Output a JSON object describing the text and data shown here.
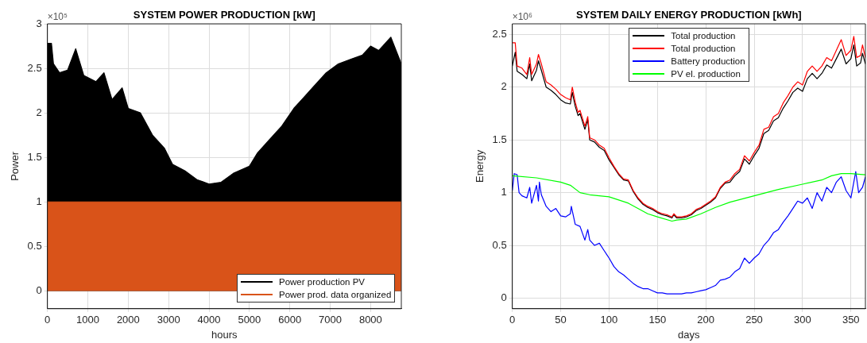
{
  "chart_data": [
    {
      "type": "area",
      "title": "SYSTEM POWER PRODUCTION [kW]",
      "xlabel": "hours",
      "ylabel": "Power",
      "annotations": [
        "×10⁵"
      ],
      "legend": "bottom right",
      "grid": true,
      "xlim": [
        0,
        8760
      ],
      "xticks": [
        0,
        1000,
        2000,
        3000,
        4000,
        5000,
        6000,
        7000,
        8000
      ],
      "ylim": [
        -0.2,
        3
      ],
      "yticks": [
        0,
        0.5,
        1,
        1.5,
        2,
        2.5,
        3
      ],
      "series": [
        {
          "name": "Power production PV",
          "color": "#000000",
          "x": [
            0,
            100,
            150,
            300,
            500,
            700,
            900,
            1200,
            1400,
            1600,
            1850,
            2000,
            2300,
            2600,
            2900,
            3100,
            3400,
            3700,
            4000,
            4300,
            4600,
            5000,
            5200,
            5500,
            5800,
            6100,
            6300,
            6600,
            6900,
            7200,
            7500,
            7800,
            8000,
            8200,
            8500,
            8760
          ],
          "values": [
            2.78,
            2.78,
            2.55,
            2.45,
            2.48,
            2.72,
            2.42,
            2.35,
            2.45,
            2.15,
            2.28,
            2.05,
            2.0,
            1.75,
            1.6,
            1.42,
            1.35,
            1.25,
            1.2,
            1.22,
            1.32,
            1.4,
            1.55,
            1.7,
            1.85,
            2.05,
            2.15,
            2.3,
            2.45,
            2.55,
            2.6,
            2.65,
            2.75,
            2.7,
            2.85,
            2.55
          ]
        },
        {
          "name": "Power prod. data organized",
          "color": "#d95319",
          "x": [
            0,
            8760
          ],
          "values": [
            1,
            1
          ]
        }
      ]
    },
    {
      "type": "line",
      "title": "SYSTEM DAILY ENERGY PRODUCTION [kWh]",
      "xlabel": "days",
      "ylabel": "Energy",
      "annotations": [
        "×10⁶"
      ],
      "legend": "top",
      "grid": true,
      "xlim": [
        0,
        365
      ],
      "xticks": [
        0,
        50,
        100,
        150,
        200,
        250,
        300,
        350
      ],
      "ylim": [
        -0.1,
        2.6
      ],
      "yticks": [
        0,
        0.5,
        1,
        1.5,
        2,
        2.5
      ],
      "x": [
        0,
        3,
        5,
        10,
        15,
        18,
        20,
        25,
        27,
        30,
        35,
        40,
        45,
        50,
        55,
        60,
        62,
        65,
        68,
        70,
        75,
        78,
        80,
        85,
        90,
        95,
        100,
        105,
        110,
        115,
        120,
        125,
        130,
        135,
        140,
        145,
        150,
        155,
        160,
        165,
        167,
        170,
        175,
        180,
        185,
        190,
        195,
        200,
        205,
        210,
        215,
        220,
        225,
        230,
        235,
        240,
        245,
        250,
        255,
        260,
        265,
        270,
        275,
        280,
        285,
        290,
        295,
        300,
        305,
        310,
        315,
        320,
        325,
        330,
        335,
        340,
        345,
        350,
        353,
        356,
        360,
        362,
        365
      ],
      "series": [
        {
          "name": "Total production",
          "color": "#000000",
          "values": [
            2.2,
            2.33,
            2.15,
            2.12,
            2.08,
            2.22,
            2.06,
            2.16,
            2.25,
            2.16,
            2.0,
            1.97,
            1.93,
            1.88,
            1.85,
            1.84,
            1.95,
            1.82,
            1.73,
            1.75,
            1.6,
            1.69,
            1.5,
            1.48,
            1.43,
            1.4,
            1.31,
            1.24,
            1.17,
            1.12,
            1.11,
            1.01,
            0.94,
            0.89,
            0.86,
            0.84,
            0.81,
            0.79,
            0.78,
            0.76,
            0.79,
            0.76,
            0.76,
            0.77,
            0.79,
            0.83,
            0.85,
            0.88,
            0.91,
            0.95,
            1.04,
            1.09,
            1.1,
            1.16,
            1.2,
            1.32,
            1.27,
            1.35,
            1.42,
            1.56,
            1.59,
            1.68,
            1.71,
            1.8,
            1.87,
            1.95,
            1.99,
            1.96,
            2.08,
            2.13,
            2.08,
            2.13,
            2.21,
            2.18,
            2.27,
            2.36,
            2.22,
            2.27,
            2.4,
            2.2,
            2.23,
            2.32,
            2.22
          ]
        },
        {
          "name": "Total production",
          "color": "#ff0000",
          "values": [
            2.42,
            2.42,
            2.2,
            2.18,
            2.12,
            2.28,
            2.12,
            2.22,
            2.31,
            2.22,
            2.05,
            2.02,
            1.98,
            1.93,
            1.9,
            1.88,
            2.0,
            1.86,
            1.76,
            1.78,
            1.63,
            1.72,
            1.52,
            1.5,
            1.45,
            1.42,
            1.33,
            1.25,
            1.18,
            1.13,
            1.12,
            1.02,
            0.95,
            0.9,
            0.87,
            0.85,
            0.82,
            0.8,
            0.79,
            0.77,
            0.8,
            0.77,
            0.77,
            0.78,
            0.8,
            0.84,
            0.86,
            0.89,
            0.92,
            0.96,
            1.05,
            1.1,
            1.12,
            1.18,
            1.22,
            1.35,
            1.3,
            1.38,
            1.45,
            1.6,
            1.62,
            1.72,
            1.75,
            1.85,
            1.92,
            2.0,
            2.05,
            2.02,
            2.15,
            2.2,
            2.15,
            2.2,
            2.28,
            2.25,
            2.35,
            2.45,
            2.3,
            2.35,
            2.48,
            2.28,
            2.3,
            2.4,
            2.28
          ]
        },
        {
          "name": "Battery production",
          "color": "#0000ff",
          "x": [
            0,
            2,
            5,
            7,
            10,
            15,
            18,
            20,
            25,
            27,
            28,
            30,
            35,
            40,
            45,
            50,
            55,
            60,
            61,
            65,
            70,
            75,
            78,
            80,
            85,
            90,
            95,
            100,
            105,
            110,
            115,
            120,
            125,
            130,
            135,
            140,
            145,
            150,
            155,
            160,
            165,
            170,
            175,
            180,
            185,
            190,
            195,
            200,
            205,
            210,
            215,
            220,
            225,
            230,
            235,
            240,
            245,
            250,
            255,
            260,
            265,
            270,
            275,
            280,
            285,
            290,
            295,
            300,
            305,
            310,
            315,
            320,
            325,
            330,
            335,
            340,
            345,
            350,
            355,
            358,
            362,
            365
          ],
          "values": [
            1.02,
            1.18,
            1.17,
            1.0,
            0.97,
            0.95,
            1.05,
            0.9,
            1.07,
            0.92,
            1.1,
            0.98,
            0.87,
            0.82,
            0.85,
            0.78,
            0.77,
            0.8,
            0.87,
            0.7,
            0.68,
            0.55,
            0.65,
            0.55,
            0.5,
            0.52,
            0.45,
            0.38,
            0.3,
            0.25,
            0.22,
            0.18,
            0.14,
            0.11,
            0.09,
            0.09,
            0.07,
            0.05,
            0.05,
            0.04,
            0.04,
            0.04,
            0.04,
            0.05,
            0.05,
            0.06,
            0.07,
            0.08,
            0.1,
            0.12,
            0.17,
            0.18,
            0.2,
            0.25,
            0.28,
            0.38,
            0.33,
            0.38,
            0.42,
            0.5,
            0.55,
            0.62,
            0.65,
            0.72,
            0.78,
            0.85,
            0.92,
            0.9,
            0.95,
            0.85,
            1.0,
            0.92,
            1.05,
            1.0,
            1.1,
            1.15,
            1.02,
            0.95,
            1.2,
            1.0,
            1.05,
            1.15
          ]
        },
        {
          "name": "PV el. production",
          "color": "#00ff00",
          "x": [
            0,
            25,
            50,
            60,
            70,
            80,
            100,
            120,
            140,
            150,
            165,
            170,
            180,
            195,
            210,
            225,
            250,
            275,
            300,
            320,
            330,
            340,
            350,
            365
          ],
          "values": [
            1.16,
            1.14,
            1.1,
            1.07,
            1.0,
            0.98,
            0.96,
            0.9,
            0.8,
            0.77,
            0.73,
            0.74,
            0.75,
            0.8,
            0.86,
            0.91,
            0.97,
            1.03,
            1.08,
            1.12,
            1.16,
            1.18,
            1.18,
            1.17
          ]
        }
      ]
    }
  ]
}
